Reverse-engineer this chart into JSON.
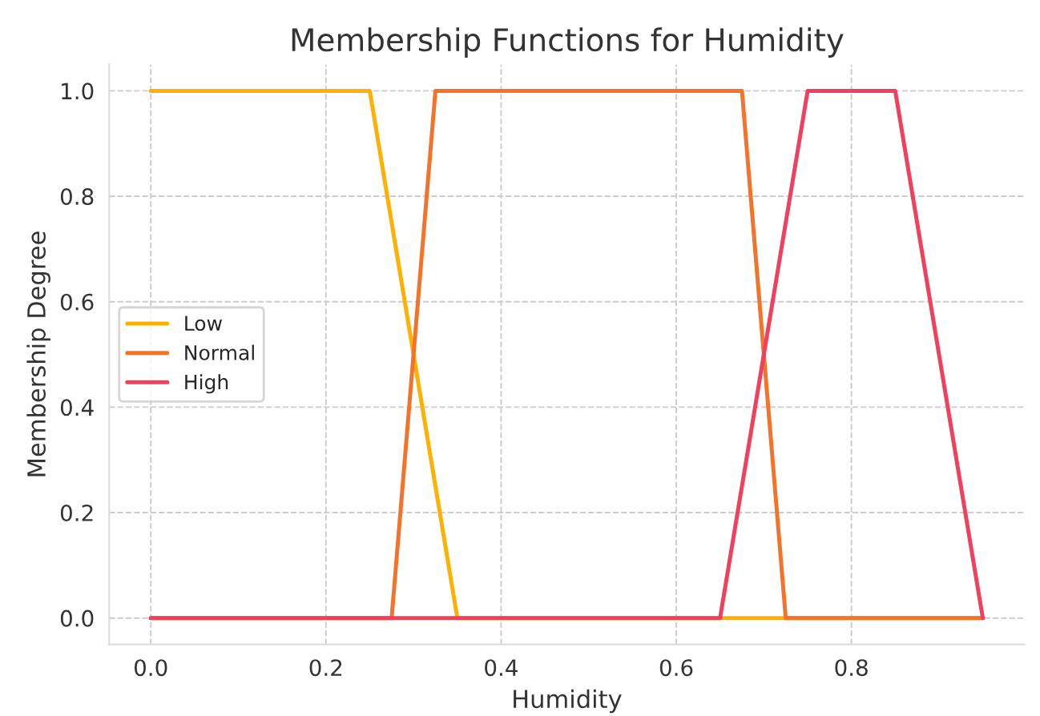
{
  "chart_data": {
    "type": "line",
    "title": "Membership Functions for Humidity",
    "xlabel": "Humidity",
    "ylabel": "Membership Degree",
    "xlim": [
      -0.0475,
      0.9975
    ],
    "ylim": [
      -0.05,
      1.05
    ],
    "xticks": [
      {
        "value": 0,
        "label": "0.0"
      },
      0.2,
      0.4,
      0.6,
      0.8
    ],
    "yticks": [
      {
        "value": 0,
        "label": "0.0"
      },
      0.2,
      0.4,
      0.6,
      0.8,
      {
        "value": 1,
        "label": "1.0"
      }
    ],
    "grid": true,
    "legend": "center left",
    "marker": "none",
    "line_style": "solid",
    "series": [
      {
        "name": "Low",
        "color": "#ffb000",
        "x": [
          0,
          0.25,
          0.35,
          0.95
        ],
        "values": [
          1,
          1,
          0,
          0
        ]
      },
      {
        "name": "Normal",
        "color": "#f4732a",
        "x": [
          0,
          0.275,
          0.325,
          0.675,
          0.725,
          0.95
        ],
        "values": [
          0,
          0,
          1,
          1,
          0,
          0
        ]
      },
      {
        "name": "High",
        "color": "#f0405e",
        "x": [
          0,
          0.65,
          0.75,
          0.85,
          0.95
        ],
        "values": [
          0,
          0,
          1,
          1,
          0
        ]
      }
    ]
  }
}
